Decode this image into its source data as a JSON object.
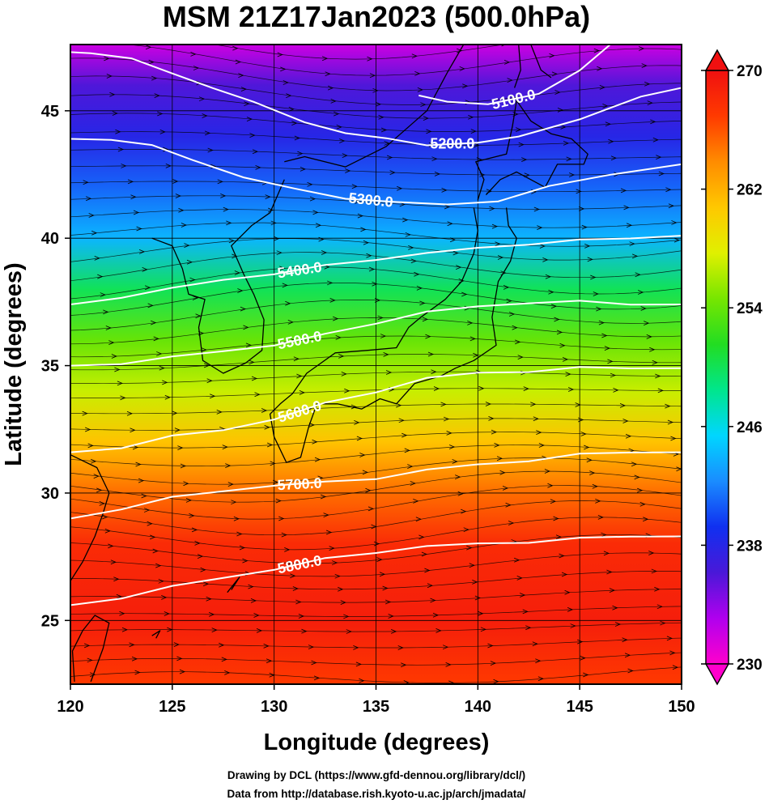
{
  "title": "MSM 21Z17Jan2023 (500.0hPa)",
  "footer": {
    "line1": "Drawing by DCL (https://www.gfd-dennou.org/library/dcl/)",
    "line2": "Data from http://database.rish.kyoto-u.ac.jp/arch/jmadata/"
  },
  "chart_data": {
    "type": "heatmap",
    "title": "MSM 21Z17Jan2023 (500.0hPa)",
    "xlabel": "Longitude (degrees)",
    "ylabel": "Latitude  (degrees)",
    "xlim": [
      120,
      150
    ],
    "ylim": [
      22.5,
      47.6
    ],
    "x_ticks": [
      120,
      125,
      130,
      135,
      140,
      145,
      150
    ],
    "y_ticks": [
      25,
      30,
      35,
      40,
      45
    ],
    "grid": true,
    "colorbar": {
      "min": 230,
      "max": 270,
      "ticks": [
        230,
        238,
        246,
        254,
        262,
        270
      ],
      "colors": [
        "#ff00cc",
        "#b000ee",
        "#4a18d8",
        "#1030f0",
        "#1a8cff",
        "#00d6ff",
        "#00e68c",
        "#22dd22",
        "#77e600",
        "#e0f000",
        "#ffc800",
        "#ff8c00",
        "#ff3a00",
        "#f01010"
      ]
    },
    "contours": [
      {
        "label": "5100.0",
        "points": [
          [
            137.1,
            45.6
          ],
          [
            138.5,
            45.4
          ],
          [
            140.5,
            45.2
          ],
          [
            143.0,
            45.7
          ],
          [
            145.0,
            46.6
          ],
          [
            146.5,
            47.6
          ]
        ]
      },
      {
        "label": "5200.0",
        "points": [
          [
            120.0,
            47.3
          ],
          [
            121.0,
            47.3
          ],
          [
            123.0,
            47.0
          ],
          [
            125.0,
            46.5
          ],
          [
            127.0,
            45.9
          ],
          [
            129.0,
            45.3
          ],
          [
            131.5,
            44.6
          ],
          [
            133.5,
            44.1
          ],
          [
            135.5,
            43.9
          ],
          [
            137.5,
            43.7
          ],
          [
            140.0,
            43.7
          ],
          [
            142.0,
            44.0
          ],
          [
            145.0,
            44.7
          ],
          [
            148.0,
            45.5
          ],
          [
            150.0,
            45.9
          ]
        ]
      },
      {
        "label": "5300.0",
        "points": [
          [
            120.0,
            43.9
          ],
          [
            122.0,
            43.9
          ],
          [
            124.0,
            43.6
          ],
          [
            126.0,
            43.1
          ],
          [
            128.5,
            42.4
          ],
          [
            131.0,
            41.9
          ],
          [
            133.5,
            41.6
          ],
          [
            136.0,
            41.4
          ],
          [
            138.5,
            41.3
          ],
          [
            141.0,
            41.5
          ],
          [
            143.5,
            42.0
          ],
          [
            146.5,
            42.5
          ],
          [
            150.0,
            42.9
          ]
        ]
      },
      {
        "label": "5400.0",
        "points": [
          [
            120.0,
            37.4
          ],
          [
            122.5,
            37.7
          ],
          [
            125.0,
            38.0
          ],
          [
            127.5,
            38.4
          ],
          [
            130.0,
            38.6
          ],
          [
            132.5,
            38.9
          ],
          [
            135.0,
            39.2
          ],
          [
            137.5,
            39.4
          ],
          [
            140.0,
            39.6
          ],
          [
            142.5,
            39.8
          ],
          [
            145.0,
            39.9
          ],
          [
            147.5,
            40.0
          ],
          [
            150.0,
            40.1
          ]
        ]
      },
      {
        "label": "5500.0",
        "points": [
          [
            120.0,
            35.0
          ],
          [
            122.5,
            35.1
          ],
          [
            125.0,
            35.3
          ],
          [
            127.5,
            35.6
          ],
          [
            130.0,
            35.8
          ],
          [
            132.5,
            36.2
          ],
          [
            135.0,
            36.7
          ],
          [
            137.5,
            37.1
          ],
          [
            140.0,
            37.3
          ],
          [
            142.5,
            37.5
          ],
          [
            145.0,
            37.5
          ],
          [
            147.5,
            37.4
          ],
          [
            150.0,
            37.4
          ]
        ]
      },
      {
        "label": "5600.0",
        "points": [
          [
            120.0,
            31.6
          ],
          [
            122.5,
            31.8
          ],
          [
            125.0,
            32.2
          ],
          [
            127.5,
            32.5
          ],
          [
            130.0,
            32.9
          ],
          [
            132.5,
            33.5
          ],
          [
            135.0,
            34.0
          ],
          [
            137.5,
            34.5
          ],
          [
            140.0,
            34.7
          ],
          [
            142.5,
            34.8
          ],
          [
            145.0,
            34.9
          ],
          [
            147.5,
            34.9
          ],
          [
            150.0,
            34.9
          ]
        ]
      },
      {
        "label": "5700.0",
        "points": [
          [
            120.0,
            29.0
          ],
          [
            122.5,
            29.4
          ],
          [
            125.0,
            29.8
          ],
          [
            127.5,
            30.1
          ],
          [
            130.0,
            30.3
          ],
          [
            132.5,
            30.4
          ],
          [
            135.0,
            30.6
          ],
          [
            137.5,
            30.9
          ],
          [
            140.0,
            31.1
          ],
          [
            142.5,
            31.3
          ],
          [
            145.0,
            31.5
          ],
          [
            147.5,
            31.6
          ],
          [
            150.0,
            31.6
          ]
        ]
      },
      {
        "label": "5800.0",
        "points": [
          [
            120.0,
            25.6
          ],
          [
            122.5,
            25.9
          ],
          [
            125.0,
            26.3
          ],
          [
            127.5,
            26.7
          ],
          [
            130.0,
            27.0
          ],
          [
            132.5,
            27.4
          ],
          [
            135.0,
            27.7
          ],
          [
            137.5,
            27.9
          ],
          [
            140.0,
            28.0
          ],
          [
            142.5,
            28.1
          ],
          [
            145.0,
            28.2
          ],
          [
            147.5,
            28.3
          ],
          [
            150.0,
            28.3
          ]
        ]
      }
    ],
    "temperature_field": [
      {
        "lat": 47.6,
        "value": 232
      },
      {
        "lat": 46.0,
        "value": 236
      },
      {
        "lat": 44.0,
        "value": 238
      },
      {
        "lat": 42.0,
        "value": 241
      },
      {
        "lat": 40.0,
        "value": 244
      },
      {
        "lat": 38.0,
        "value": 250
      },
      {
        "lat": 36.0,
        "value": 254
      },
      {
        "lat": 34.0,
        "value": 257
      },
      {
        "lat": 32.0,
        "value": 261
      },
      {
        "lat": 30.0,
        "value": 265
      },
      {
        "lat": 28.0,
        "value": 268
      },
      {
        "lat": 25.0,
        "value": 269
      },
      {
        "lat": 22.5,
        "value": 267
      }
    ],
    "wind_direction": "west-to-east streamlines"
  }
}
